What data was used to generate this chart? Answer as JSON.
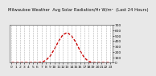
{
  "title": "Milwaukee Weather  Avg Solar Radiation/Hr W/m²  (Last 24 Hours)",
  "hours": [
    0,
    1,
    2,
    3,
    4,
    5,
    6,
    7,
    8,
    9,
    10,
    11,
    12,
    13,
    14,
    15,
    16,
    17,
    18,
    19,
    20,
    21,
    22,
    23
  ],
  "values": [
    0,
    0,
    0,
    0,
    0,
    0,
    0,
    5,
    40,
    120,
    250,
    400,
    520,
    560,
    500,
    380,
    220,
    90,
    20,
    2,
    0,
    0,
    0,
    0
  ],
  "line_color": "#cc0000",
  "bg_color": "#e8e8e8",
  "plot_bg": "#ffffff",
  "grid_color": "#aaaaaa",
  "text_color": "#111111",
  "spine_color": "#555555",
  "ylim": [
    0,
    700
  ],
  "yticks": [
    0,
    100,
    200,
    300,
    400,
    500,
    600,
    700
  ],
  "title_fontsize": 3.8,
  "tick_fontsize": 3.2,
  "line_width": 1.0
}
